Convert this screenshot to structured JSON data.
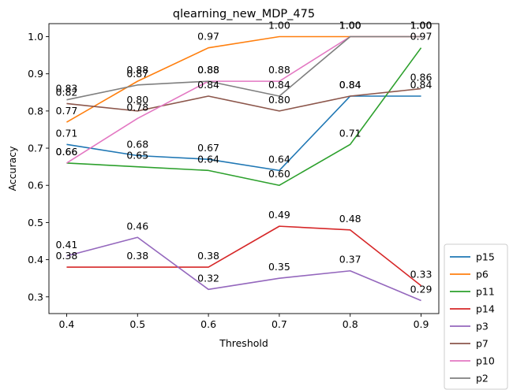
{
  "chart_data": {
    "type": "line",
    "title": "qlearning_new_MDP_475",
    "xlabel": "Threshold",
    "ylabel": "Accuracy",
    "x": [
      0.4,
      0.5,
      0.6,
      0.7,
      0.8,
      0.9
    ],
    "x_tick_labels": [
      "0.4",
      "0.5",
      "0.6",
      "0.7",
      "0.8",
      "0.9"
    ],
    "y_ticks": [
      0.3,
      0.4,
      0.5,
      0.6,
      0.7,
      0.8,
      0.9,
      1.0
    ],
    "y_tick_labels": [
      "0.3",
      "0.4",
      "0.5",
      "0.6",
      "0.7",
      "0.8",
      "0.9",
      "1.0"
    ],
    "xlim": [
      0.375,
      0.925
    ],
    "ylim": [
      0.255,
      1.035
    ],
    "grid": false,
    "legend_position": "outside-right-bottom",
    "series": [
      {
        "name": "p15",
        "color": "#1f77b4",
        "values": [
          0.71,
          0.68,
          0.67,
          0.64,
          0.84,
          0.84
        ],
        "labels": [
          "0.71",
          "0.68",
          "0.67",
          "0.64",
          "0.84",
          "0.84"
        ]
      },
      {
        "name": "p6",
        "color": "#ff7f0e",
        "values": [
          0.77,
          0.88,
          0.97,
          1.0,
          1.0,
          1.0
        ],
        "labels": [
          "0.77",
          "0.88",
          "0.97",
          "1.00",
          "1.00",
          "1.00"
        ]
      },
      {
        "name": "p11",
        "color": "#2ca02c",
        "values": [
          0.66,
          0.65,
          0.64,
          0.6,
          0.71,
          0.97
        ],
        "labels": [
          "0.66",
          "0.65",
          "0.64",
          "0.60",
          "0.71",
          "0.97"
        ]
      },
      {
        "name": "p14",
        "color": "#d62728",
        "values": [
          0.38,
          0.38,
          0.38,
          0.49,
          0.48,
          0.33
        ],
        "labels": [
          "0.38",
          "0.38",
          "0.38",
          "0.49",
          "0.48",
          "0.33"
        ]
      },
      {
        "name": "p3",
        "color": "#9467bd",
        "values": [
          0.41,
          0.46,
          0.32,
          0.35,
          0.37,
          0.29
        ],
        "labels": [
          "0.41",
          "0.46",
          "0.32",
          "0.35",
          "0.37",
          "0.29"
        ]
      },
      {
        "name": "p7",
        "color": "#8c564b",
        "values": [
          0.82,
          0.8,
          0.84,
          0.8,
          0.84,
          0.86
        ],
        "labels": [
          "0.82",
          "0.80",
          "0.84",
          "0.80",
          "0.84",
          "0.86"
        ]
      },
      {
        "name": "p10",
        "color": "#e377c2",
        "values": [
          0.66,
          0.78,
          0.88,
          0.88,
          1.0,
          1.0
        ],
        "labels": [
          "0.66",
          "0.78",
          "0.88",
          "0.88",
          "1.00",
          "1.00"
        ]
      },
      {
        "name": "p2",
        "color": "#7f7f7f",
        "values": [
          0.83,
          0.87,
          0.88,
          0.84,
          1.0,
          1.0
        ],
        "labels": [
          "0.83",
          "0.87",
          "0.88",
          "0.84",
          "1.00",
          "1.00"
        ]
      }
    ]
  }
}
